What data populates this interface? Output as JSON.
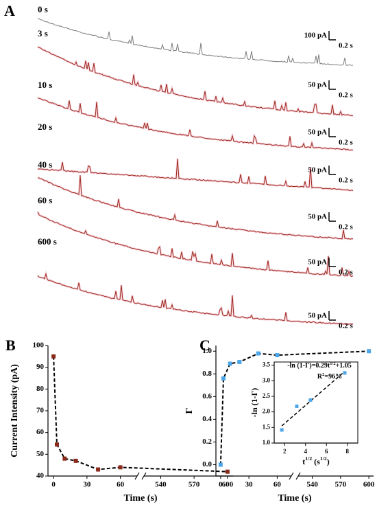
{
  "chart_data": [
    {
      "type": "traces",
      "panel": "A",
      "series": [
        {
          "name": "0 s",
          "color": "#7a7a7a",
          "label_color": "#333333",
          "scale_current": "100 pA",
          "scale_time": "0.2 s"
        },
        {
          "name": "3 s",
          "color": "#9c2a1c",
          "label_color": "#b0392a",
          "scale_current": "50 pA",
          "scale_time": "0.2 s"
        },
        {
          "name": "10 s",
          "color": "#9c2a1c",
          "label_color": "#b0392a",
          "scale_current": "50 pA",
          "scale_time": "0.2 s"
        },
        {
          "name": "20 s",
          "color": "#9c2a1c",
          "label_color": "#b0392a",
          "scale_current": "50 pA",
          "scale_time": "0.2 s"
        },
        {
          "name": "40 s",
          "color": "#9c2a1c",
          "label_color": "#b0392a",
          "scale_current": "50 pA",
          "scale_time": "0.2 s"
        },
        {
          "name": "60 s",
          "color": "#9c2a1c",
          "label_color": "#b0392a",
          "scale_current": "50 pA",
          "scale_time": "0.2 s"
        },
        {
          "name": "600 s",
          "color": "#9c2a1c",
          "label_color": "#b0392a",
          "scale_current": "50 pA",
          "scale_time": "0.2 s"
        }
      ]
    },
    {
      "type": "line",
      "panel": "B",
      "ylabel": "Current Intensity (pA)",
      "xlabel": [
        "Time (s)"
      ],
      "x": [
        0,
        3,
        10,
        20,
        40,
        60,
        600
      ],
      "values": [
        95,
        54.5,
        48,
        47,
        43,
        44,
        42
      ],
      "color": "#8b2a1a",
      "xlim": [
        -5,
        605
      ],
      "xbreak": [
        75,
        525
      ],
      "xticks": [
        0,
        30,
        60,
        540,
        570,
        600
      ],
      "ylim": [
        40,
        100
      ],
      "yticks": [
        40,
        50,
        60,
        70,
        80,
        90,
        100
      ]
    },
    {
      "type": "line",
      "panel": "C",
      "ylabel": "Γ",
      "xlabel": [
        "Time (s)"
      ],
      "x": [
        0,
        3,
        10,
        20,
        40,
        60,
        600
      ],
      "values": [
        0,
        0.76,
        0.89,
        0.905,
        0.98,
        0.965,
        1.0
      ],
      "color": "#4da6e8",
      "xlim": [
        -5,
        605
      ],
      "xbreak": [
        75,
        525
      ],
      "xticks": [
        0,
        30,
        60,
        540,
        570,
        600
      ],
      "ylim": [
        -0.1,
        1.05
      ],
      "yticks": [
        {
          "value": 0,
          "label": "0.0"
        },
        {
          "value": 0.2,
          "label": "0.2"
        },
        {
          "value": 0.4,
          "label": "0.4"
        },
        {
          "value": 0.6,
          "label": "0.6"
        },
        {
          "value": 0.8,
          "label": "0.8"
        },
        {
          "value": 1,
          "label": "1.0"
        }
      ]
    },
    {
      "type": "scatter",
      "ylabel": "-ln (1-Γ)",
      "xlabel": [
        "t",
        "1/2",
        " (s",
        "1/2",
        ")"
      ],
      "equation": [
        "-ln (1-Γ)=0.29t",
        "1/2",
        "+1.05"
      ],
      "r2": [
        "R",
        "2",
        "=96%"
      ],
      "fit": {
        "slope": 0.29,
        "intercept": 1.05
      },
      "x": [
        1.73,
        3.16,
        4.47,
        7.75
      ],
      "values": [
        1.42,
        2.18,
        2.38,
        3.25
      ],
      "color": "#4da6e8",
      "xlim": [
        1,
        9
      ],
      "xticks": [
        2,
        4,
        6,
        8
      ],
      "ylim": [
        1,
        3.6
      ],
      "yticks": [
        {
          "value": 1,
          "label": "1.0"
        },
        {
          "value": 1.5,
          "label": "1.5"
        },
        {
          "value": 2,
          "label": "2.0"
        },
        {
          "value": 2.5,
          "label": "2.5"
        },
        {
          "value": 3,
          "label": "3.0"
        },
        {
          "value": 3.5,
          "label": "3.5"
        }
      ]
    }
  ]
}
